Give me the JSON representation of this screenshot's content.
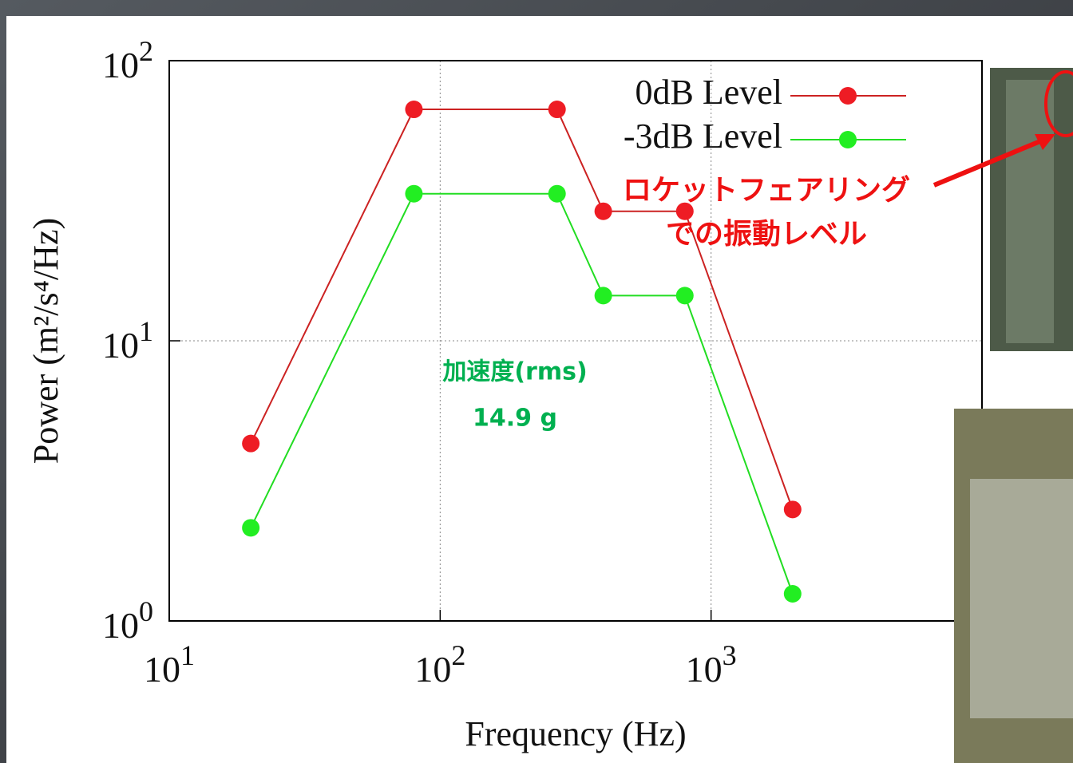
{
  "chart_data": {
    "type": "line",
    "x_label": "Frequency (Hz)",
    "y_label": "Power (m²/s⁴/Hz)",
    "x": [
      20,
      80,
      270,
      400,
      800,
      2000
    ],
    "series": [
      {
        "name": "0dB Level",
        "color": "#cc2222",
        "marker_color": "#ee1c24",
        "values": [
          4.3,
          67,
          67,
          29,
          29,
          2.5
        ]
      },
      {
        "name": "-3dB Level",
        "color": "#22dd22",
        "marker_color": "#22ee22",
        "values": [
          2.15,
          33.5,
          33.5,
          14.5,
          14.5,
          1.25
        ]
      }
    ],
    "xlim": [
      10,
      10000
    ],
    "ylim": [
      1,
      100
    ],
    "log_x": true,
    "log_y": true,
    "xticks": [
      {
        "value": 10,
        "label": "10^1"
      },
      {
        "value": 100,
        "label": "10^2"
      },
      {
        "value": 1000,
        "label": "10^3"
      }
    ],
    "yticks": [
      {
        "value": 1,
        "label": "10^0"
      },
      {
        "value": 10,
        "label": "10^1"
      },
      {
        "value": 100,
        "label": "10^2"
      }
    ],
    "grid": true,
    "legend": "upper right",
    "annotations": [
      {
        "lines": [
          "ロケットフェアリング",
          "での振動レベル"
        ],
        "color": "#ee1111"
      },
      {
        "lines": [
          "加速度(rms)",
          "14.9 g"
        ],
        "color": "#00b050"
      }
    ]
  }
}
